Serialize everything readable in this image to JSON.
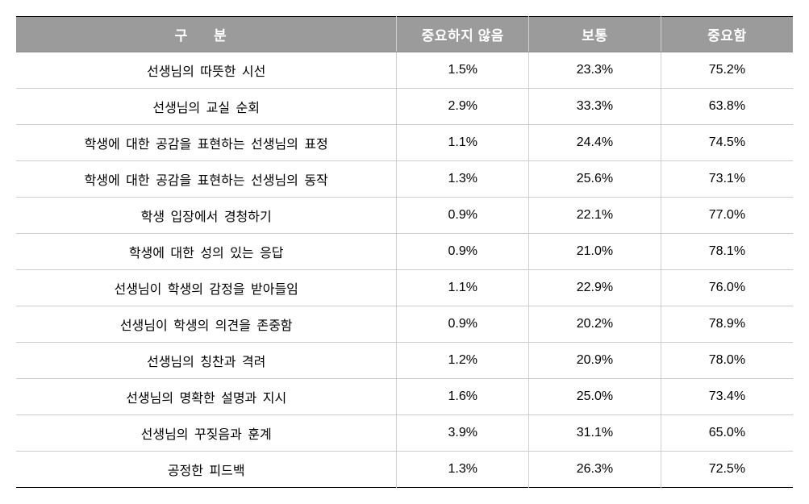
{
  "table": {
    "type": "table",
    "background_color": "#ffffff",
    "header_bg_color": "#9b9b9b",
    "header_text_color": "#ffffff",
    "border_color": "#cccccc",
    "outer_border_color": "#000000",
    "font_size": 16,
    "header_font_size": 17,
    "columns": [
      {
        "key": "category",
        "label": "구      분",
        "width": "49%"
      },
      {
        "key": "not_important",
        "label": "중요하지 않음",
        "width": "17%"
      },
      {
        "key": "normal",
        "label": "보통",
        "width": "17%"
      },
      {
        "key": "important",
        "label": "중요함",
        "width": "17%"
      }
    ],
    "rows": [
      {
        "category": "선생님의 따뜻한 시선",
        "not_important": "1.5%",
        "normal": "23.3%",
        "important": "75.2%"
      },
      {
        "category": "선생님의 교실 순회",
        "not_important": "2.9%",
        "normal": "33.3%",
        "important": "63.8%"
      },
      {
        "category": "학생에 대한 공감을 표현하는 선생님의 표정",
        "not_important": "1.1%",
        "normal": "24.4%",
        "important": "74.5%"
      },
      {
        "category": "학생에 대한 공감을 표현하는 선생님의 동작",
        "not_important": "1.3%",
        "normal": "25.6%",
        "important": "73.1%"
      },
      {
        "category": "학생 입장에서 경청하기",
        "not_important": "0.9%",
        "normal": "22.1%",
        "important": "77.0%"
      },
      {
        "category": "학생에 대한 성의 있는 응답",
        "not_important": "0.9%",
        "normal": "21.0%",
        "important": "78.1%"
      },
      {
        "category": "선생님이 학생의 감정을 받아들임",
        "not_important": "1.1%",
        "normal": "22.9%",
        "important": "76.0%"
      },
      {
        "category": "선생님이 학생의 의견을 존중함",
        "not_important": "0.9%",
        "normal": "20.2%",
        "important": "78.9%"
      },
      {
        "category": "선생님의 칭찬과 격려",
        "not_important": "1.2%",
        "normal": "20.9%",
        "important": "78.0%"
      },
      {
        "category": "선생님의 명확한 설명과 지시",
        "not_important": "1.6%",
        "normal": "25.0%",
        "important": "73.4%"
      },
      {
        "category": "선생님의 꾸짖음과 훈계",
        "not_important": "3.9%",
        "normal": "31.1%",
        "important": "65.0%"
      },
      {
        "category": "공정한 피드백",
        "not_important": "1.3%",
        "normal": "26.3%",
        "important": "72.5%"
      }
    ]
  }
}
